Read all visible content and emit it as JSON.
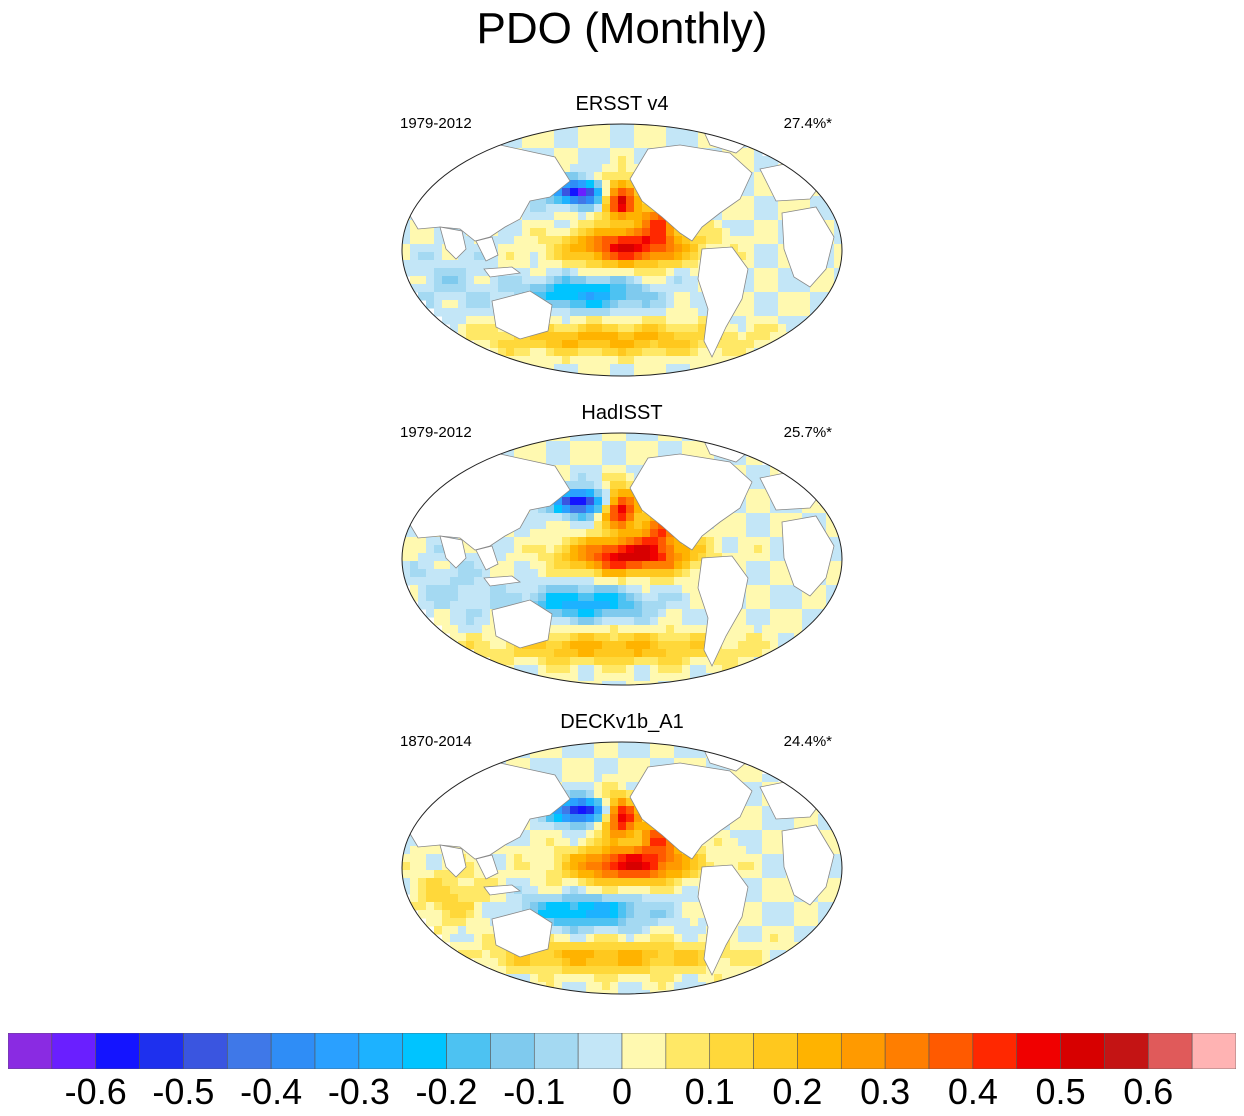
{
  "title": "PDO (Monthly)",
  "panels": [
    {
      "name": "ERSST v4",
      "period": "1979-2012",
      "percent": "27.4%*"
    },
    {
      "name": "HadISST",
      "period": "1979-2012",
      "percent": "25.7%*"
    },
    {
      "name": "DECKv1b_A1",
      "period": "1870-2014",
      "percent": "24.4%*"
    }
  ],
  "colorbar": {
    "colors": [
      "#8a2be2",
      "#6a1fff",
      "#1414ff",
      "#1e30ee",
      "#3a55e0",
      "#3f78e8",
      "#2f8df6",
      "#2aa0ff",
      "#1db2ff",
      "#00c4ff",
      "#4dc2f2",
      "#7fcaee",
      "#a4d9f2",
      "#c3e6f7",
      "#fff9b0",
      "#ffe866",
      "#ffd83a",
      "#ffc81e",
      "#ffb300",
      "#ff9a00",
      "#ff7e00",
      "#ff5a00",
      "#ff2800",
      "#f00000",
      "#d70000",
      "#c41414",
      "#e05a5a",
      "#ffb3b3"
    ],
    "labels": [
      "-0.6",
      "-0.5",
      "-0.4",
      "-0.3",
      "-0.2",
      "-0.1",
      "0",
      "0.1",
      "0.2",
      "0.3",
      "0.4",
      "0.5",
      "0.6"
    ]
  }
}
